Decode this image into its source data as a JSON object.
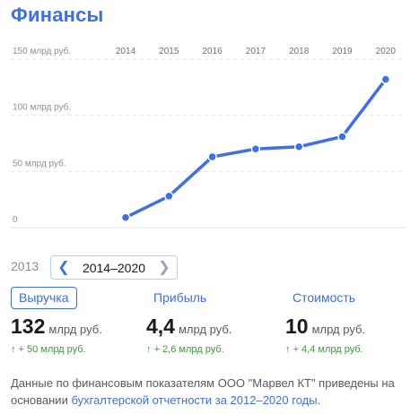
{
  "header": {
    "title": "Финансы"
  },
  "chart_data": {
    "type": "line",
    "categories": [
      "2014",
      "2015",
      "2016",
      "2017",
      "2018",
      "2019",
      "2020"
    ],
    "values": [
      9,
      28,
      63,
      70,
      72,
      81,
      132
    ],
    "y_ticks": [
      {
        "value": 0,
        "label": "0"
      },
      {
        "value": 50,
        "label": "50 млрд руб."
      },
      {
        "value": 100,
        "label": "100 млрд руб."
      },
      {
        "value": 150,
        "label": "150 млрд руб."
      }
    ],
    "ylim": [
      0,
      150
    ],
    "x_labels_position": "top",
    "grid": true,
    "line_color": "#3d6ef0"
  },
  "period": {
    "previous_year": "2013",
    "range_label": "2014–2020"
  },
  "metrics": [
    {
      "label": "Выручка",
      "value": "132",
      "unit": "млрд руб.",
      "delta": "+ 50 млрд руб.",
      "active": true
    },
    {
      "label": "Прибыль",
      "value": "4,4",
      "unit": "млрд руб.",
      "delta": "+ 2,6 млрд руб.",
      "active": false
    },
    {
      "label": "Стоимость",
      "value": "10",
      "unit": "млрд руб.",
      "delta": "+ 4,4 млрд руб.",
      "active": false
    }
  ],
  "footnote": {
    "text": "Данные по финансовым показателям ООО \"Марвел КТ\" приведены на основании ",
    "link_text": "бухгалтерской отчетности за 2012–2020 годы",
    "end": "."
  },
  "colors": {
    "accent": "#3d6ef0",
    "positive": "#3f9a3a",
    "muted": "#8a8f99"
  }
}
